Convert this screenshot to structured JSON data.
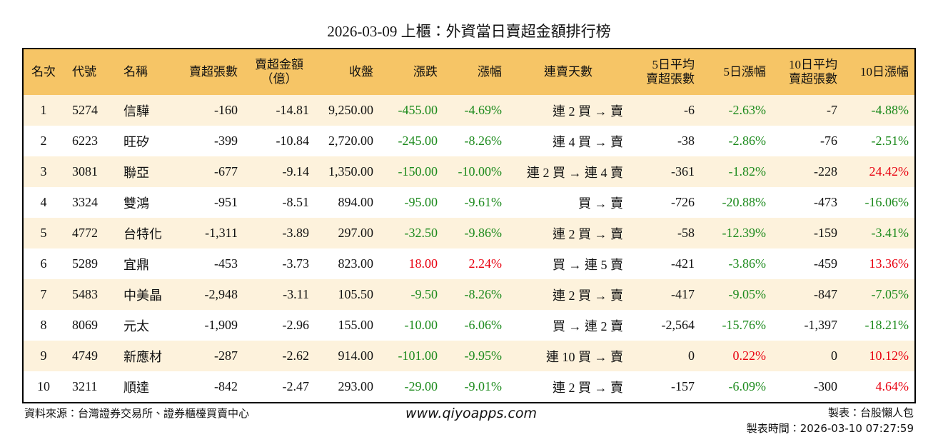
{
  "title": "2026-03-09 上櫃：外資當日賣超金額排行榜",
  "table": {
    "header": [
      "名次",
      "代號",
      "名稱",
      "賣超張數",
      "賣超金額\n（億）",
      "收盤",
      "漲跌",
      "漲幅",
      "連賣天數",
      "5日平均\n賣超張數",
      "5日漲幅",
      "10日平均\n賣超張數",
      "10日漲幅"
    ],
    "rows": [
      [
        "1",
        "5274",
        "信驊",
        "-160",
        "-14.81",
        "9,250.00",
        "-455.00",
        "-4.69%",
        "連 2 買 → 賣",
        "-6",
        "-2.63%",
        "-7",
        "-4.88%"
      ],
      [
        "2",
        "6223",
        "旺矽",
        "-399",
        "-10.84",
        "2,720.00",
        "-245.00",
        "-8.26%",
        "連 4 買 → 賣",
        "-38",
        "-2.86%",
        "-76",
        "-2.51%"
      ],
      [
        "3",
        "3081",
        "聯亞",
        "-677",
        "-9.14",
        "1,350.00",
        "-150.00",
        "-10.00%",
        "連 2 買 → 連 4 賣",
        "-361",
        "-1.82%",
        "-228",
        "24.42%"
      ],
      [
        "4",
        "3324",
        "雙鴻",
        "-951",
        "-8.51",
        "894.00",
        "-95.00",
        "-9.61%",
        "買 → 賣",
        "-726",
        "-20.88%",
        "-473",
        "-16.06%"
      ],
      [
        "5",
        "4772",
        "台特化",
        "-1,311",
        "-3.89",
        "297.00",
        "-32.50",
        "-9.86%",
        "連 2 買 → 賣",
        "-58",
        "-12.39%",
        "-159",
        "-3.41%"
      ],
      [
        "6",
        "5289",
        "宜鼎",
        "-453",
        "-3.73",
        "823.00",
        "18.00",
        "2.24%",
        "買 → 連 5 賣",
        "-421",
        "-3.86%",
        "-459",
        "13.36%"
      ],
      [
        "7",
        "5483",
        "中美晶",
        "-2,948",
        "-3.11",
        "105.50",
        "-9.50",
        "-8.26%",
        "連 2 買 → 賣",
        "-417",
        "-9.05%",
        "-847",
        "-7.05%"
      ],
      [
        "8",
        "8069",
        "元太",
        "-1,909",
        "-2.96",
        "155.00",
        "-10.00",
        "-6.06%",
        "買 → 連 2 賣",
        "-2,564",
        "-15.76%",
        "-1,397",
        "-18.21%"
      ],
      [
        "9",
        "4749",
        "新應材",
        "-287",
        "-2.62",
        "914.00",
        "-101.00",
        "-9.95%",
        "連 10 買 → 賣",
        "0",
        "0.22%",
        "0",
        "10.12%"
      ],
      [
        "10",
        "3211",
        "順達",
        "-842",
        "-2.47",
        "293.00",
        "-29.00",
        "-9.01%",
        "連 2 買 → 賣",
        "-157",
        "-6.09%",
        "-300",
        "4.64%"
      ]
    ]
  },
  "footer": {
    "source": "資料來源：台灣證券交易所、證券櫃檯買賣中心",
    "website": "www.qiyoapps.com",
    "author": "製表：台股懶人包",
    "timestamp": "製表時間：2026-03-10 07:27:59"
  }
}
